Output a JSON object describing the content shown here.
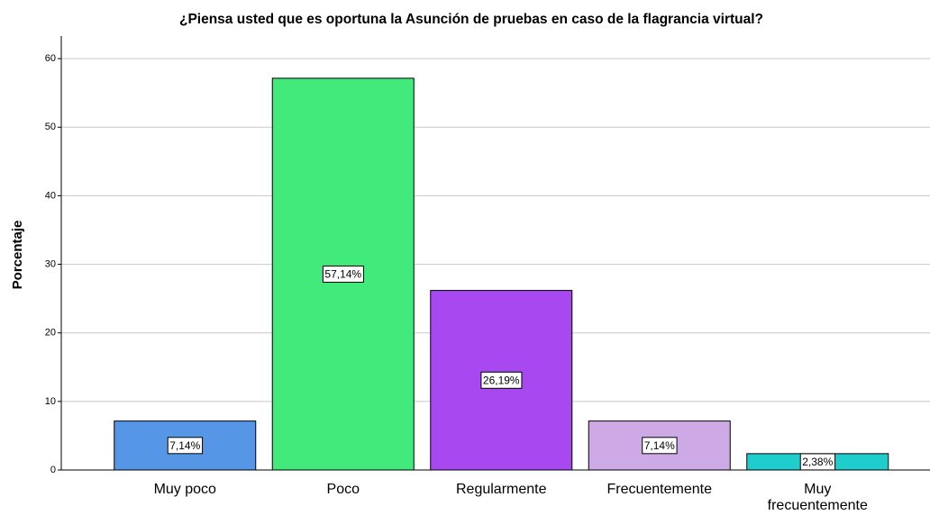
{
  "chart_data": {
    "type": "bar",
    "title": "¿Piensa usted que es oportuna la Asunción de pruebas en caso de la flagrancia virtual?",
    "y_label": "Porcentaje",
    "categories": [
      "Muy poco",
      "Poco",
      "Regularmente",
      "Frecuentemente",
      "Muy frecuentemente"
    ],
    "values": [
      7.14,
      57.14,
      26.19,
      7.14,
      2.38
    ],
    "value_labels": [
      "7,14%",
      "57,14%",
      "26,19%",
      "7,14%",
      "2,38%"
    ],
    "colors": [
      "#5596e6",
      "#41ea7b",
      "#a748f0",
      "#cdaae6",
      "#1fcdcd"
    ],
    "ylim": [
      0,
      63.3
    ],
    "yticks": [
      0,
      10,
      20,
      30,
      40,
      50,
      60
    ],
    "grid": true
  }
}
